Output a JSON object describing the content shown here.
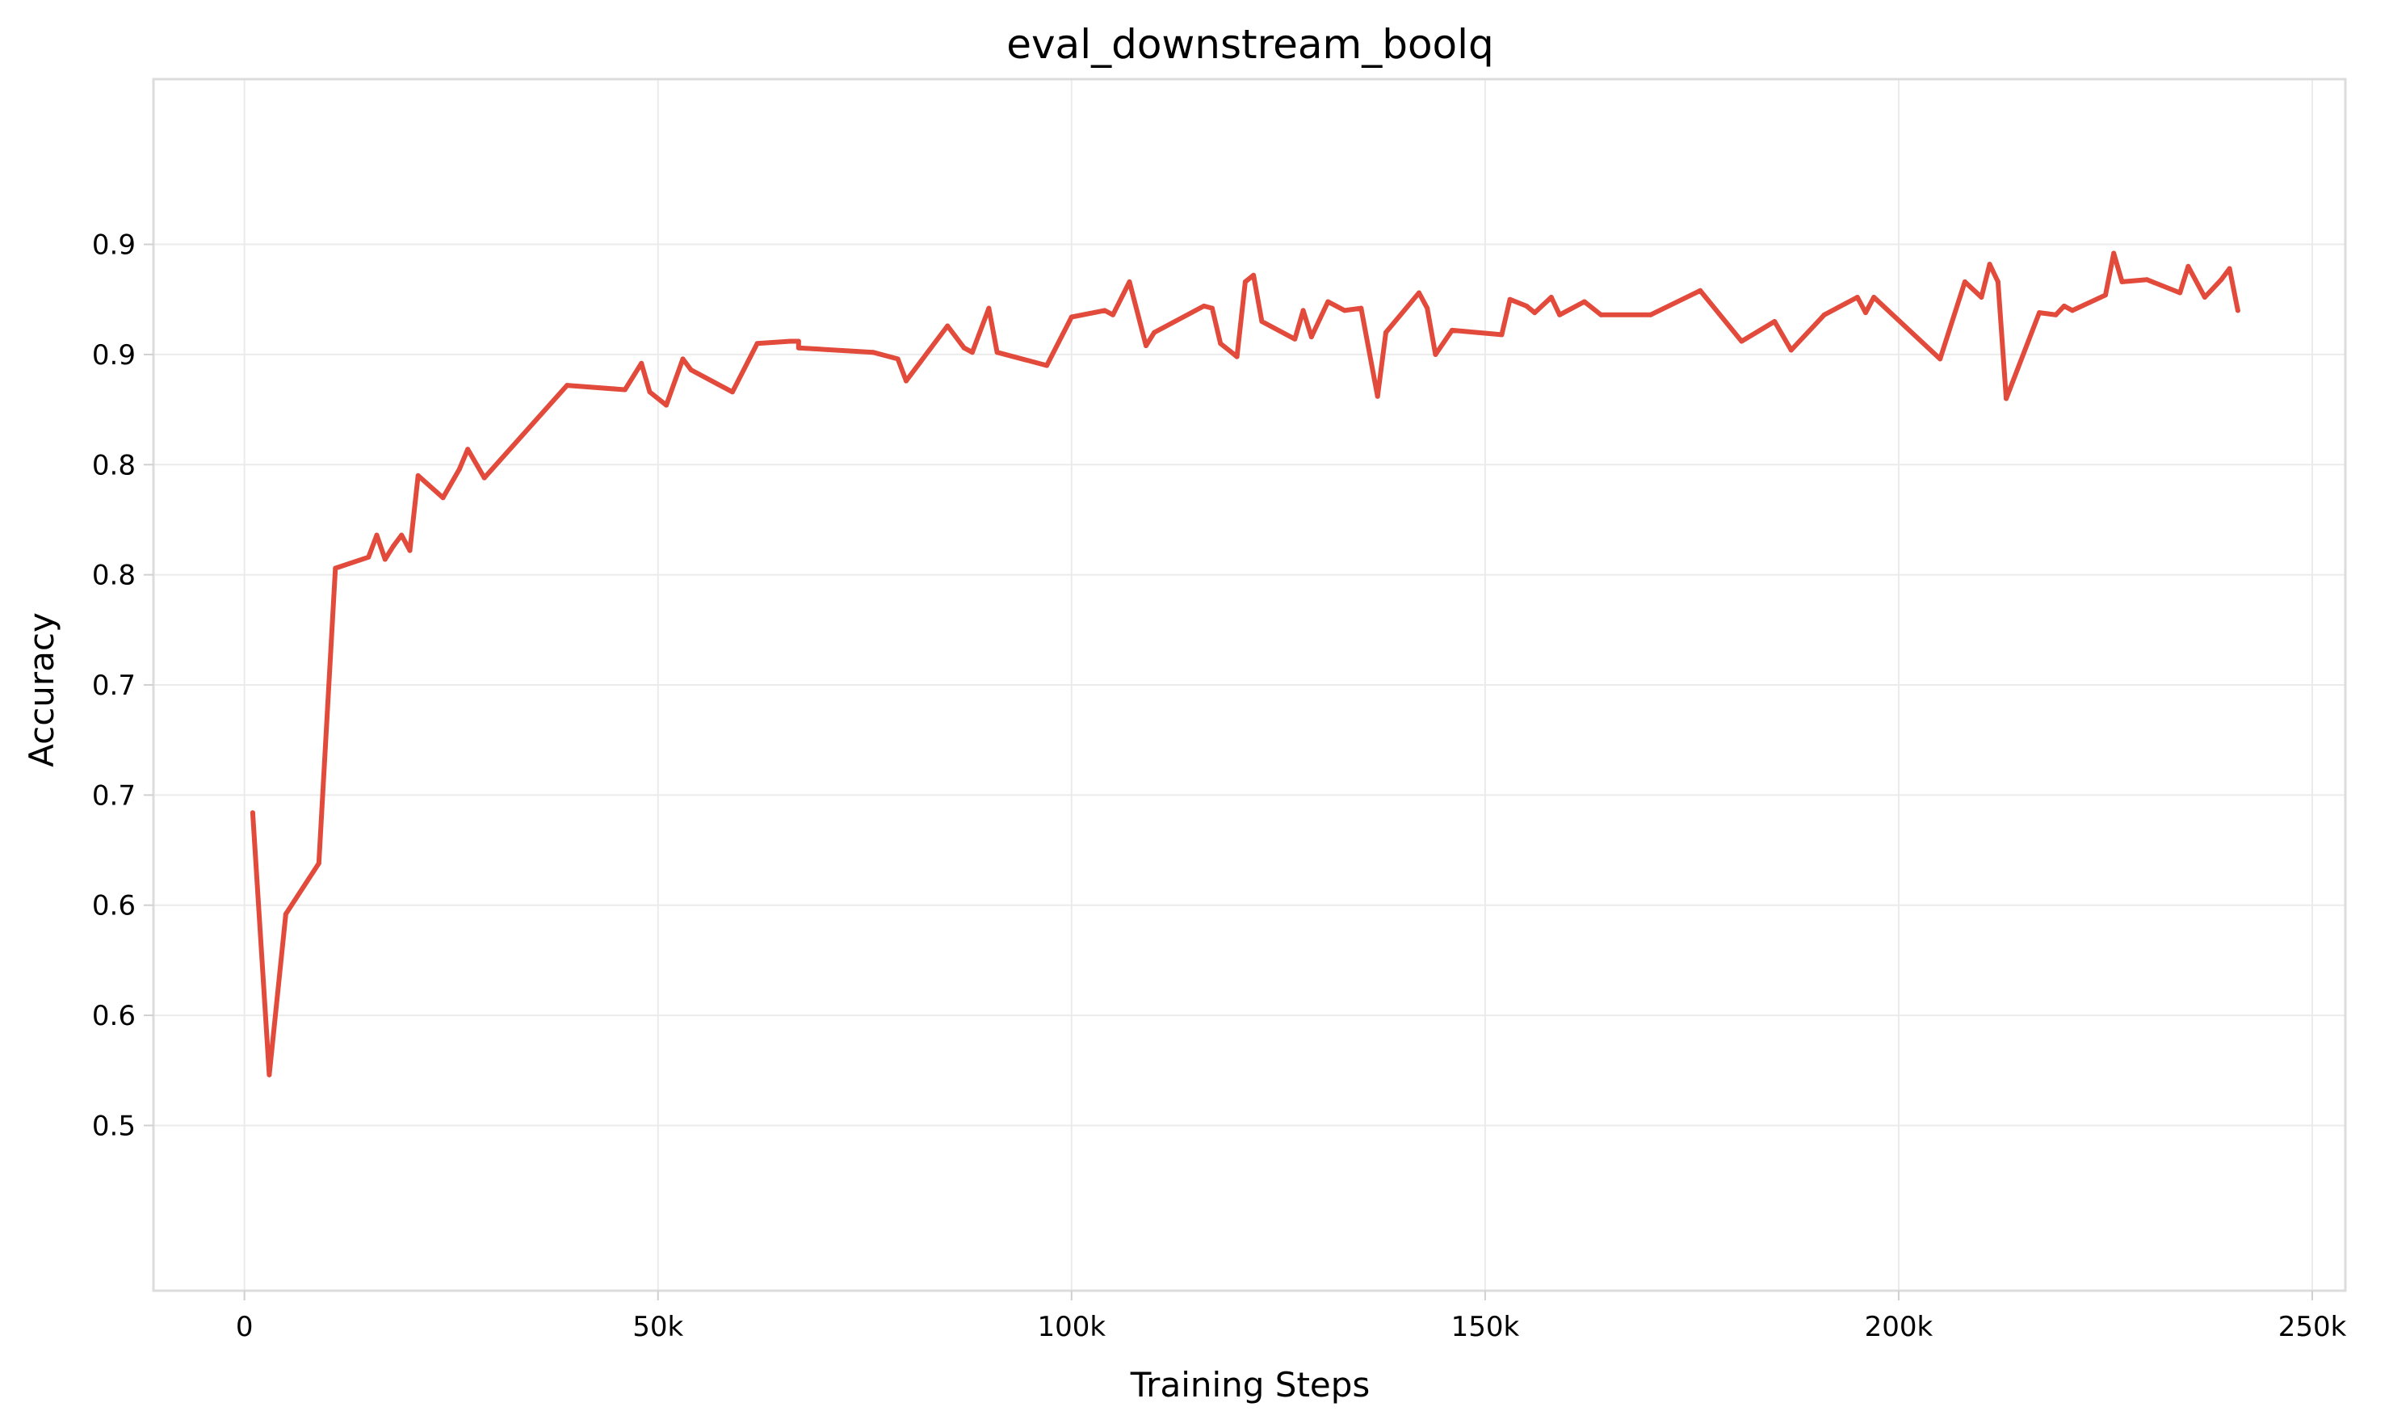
{
  "chart_data": {
    "type": "line",
    "title": "eval_downstream_boolq",
    "xlabel": "Training Steps",
    "ylabel": "Accuracy",
    "xlim": [
      -11000,
      254000
    ],
    "ylim": [
      0.425,
      0.975
    ],
    "x_ticks": [
      {
        "value": 0,
        "label": "0"
      },
      {
        "value": 50000,
        "label": "50k"
      },
      {
        "value": 100000,
        "label": "100k"
      },
      {
        "value": 150000,
        "label": "150k"
      },
      {
        "value": 200000,
        "label": "200k"
      },
      {
        "value": 250000,
        "label": "250k"
      }
    ],
    "y_ticks": [
      {
        "value": 0.5,
        "label": "0.5"
      },
      {
        "value": 0.55,
        "label": "0.6"
      },
      {
        "value": 0.6,
        "label": "0.6"
      },
      {
        "value": 0.65,
        "label": "0.7"
      },
      {
        "value": 0.7,
        "label": "0.7"
      },
      {
        "value": 0.75,
        "label": "0.8"
      },
      {
        "value": 0.8,
        "label": "0.8"
      },
      {
        "value": 0.85,
        "label": "0.9"
      },
      {
        "value": 0.9,
        "label": "0.9"
      }
    ],
    "grid": true,
    "series": [
      {
        "color": "#e24a3b",
        "x": [
          1000,
          3000,
          5000,
          9000,
          11000,
          15000,
          16000,
          17000,
          18000,
          19000,
          20000,
          21000,
          24000,
          26000,
          27000,
          29000,
          39000,
          46000,
          48000,
          49000,
          51000,
          53000,
          54000,
          59000,
          62000,
          66000,
          67000,
          67000,
          76000,
          79000,
          80000,
          85000,
          87000,
          88000,
          90000,
          91000,
          97000,
          100000,
          104000,
          105000,
          107000,
          109000,
          110000,
          116000,
          117000,
          118000,
          120000,
          121000,
          122000,
          123000,
          127000,
          128000,
          129000,
          131000,
          133000,
          135000,
          137000,
          138000,
          142000,
          143000,
          144000,
          146000,
          152000,
          153000,
          155000,
          156000,
          158000,
          159000,
          162000,
          164000,
          170000,
          176000,
          181000,
          185000,
          187000,
          191000,
          195000,
          196000,
          197000,
          205000,
          208000,
          210000,
          211000,
          212000,
          213000,
          217000,
          219000,
          220000,
          221000,
          225000,
          226000,
          227000,
          230000,
          234000,
          235000,
          237000,
          239000,
          240000,
          241000
        ],
        "y": [
          0.642,
          0.523,
          0.596,
          0.619,
          0.753,
          0.758,
          0.768,
          0.757,
          0.763,
          0.768,
          0.761,
          0.795,
          0.785,
          0.798,
          0.807,
          0.794,
          0.836,
          0.834,
          0.846,
          0.833,
          0.827,
          0.848,
          0.843,
          0.833,
          0.855,
          0.856,
          0.856,
          0.853,
          0.851,
          0.848,
          0.838,
          0.863,
          0.853,
          0.851,
          0.871,
          0.851,
          0.845,
          0.867,
          0.87,
          0.868,
          0.883,
          0.854,
          0.86,
          0.872,
          0.871,
          0.855,
          0.849,
          0.883,
          0.886,
          0.865,
          0.857,
          0.87,
          0.858,
          0.874,
          0.87,
          0.871,
          0.831,
          0.86,
          0.878,
          0.871,
          0.85,
          0.861,
          0.859,
          0.875,
          0.872,
          0.869,
          0.876,
          0.868,
          0.874,
          0.868,
          0.868,
          0.879,
          0.856,
          0.865,
          0.852,
          0.868,
          0.876,
          0.869,
          0.876,
          0.848,
          0.883,
          0.876,
          0.891,
          0.883,
          0.83,
          0.869,
          0.868,
          0.872,
          0.87,
          0.877,
          0.896,
          0.883,
          0.884,
          0.878,
          0.89,
          0.876,
          0.884,
          0.889,
          0.87
        ]
      }
    ]
  }
}
